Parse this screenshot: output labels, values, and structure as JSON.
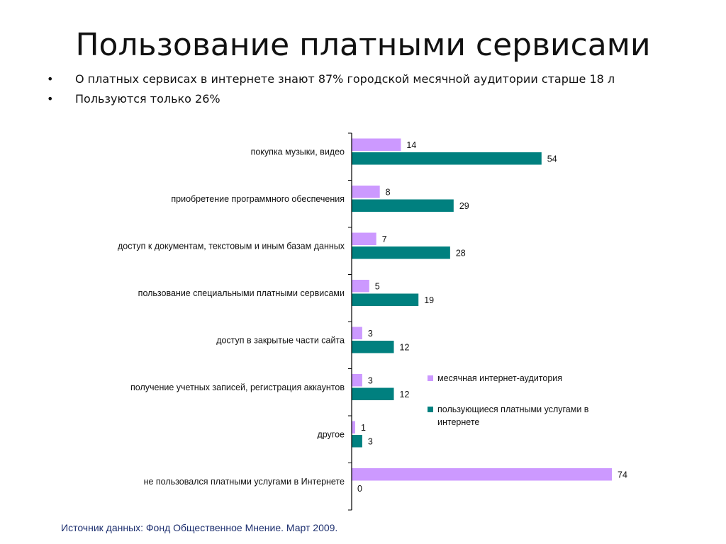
{
  "slide": {
    "title": "Пользование платными сервисами",
    "bullets": [
      "О платных сервисах в интернете знают 87% городской месячной аудитории старше 18 л",
      "Пользуются только 26%"
    ],
    "bullet_symbol": "•",
    "source": "Источник данных: Фонд Общественное Мнение.  Март 2009."
  },
  "chart_data": {
    "type": "bar",
    "orientation": "horizontal",
    "categories": [
      "покупка музыки, видео",
      "приобретение программного обеспечения",
      "доступ к документам, текстовым и иным базам данных",
      "пользование специальными платными сервисами",
      "доступ в закрытые части сайта",
      "получение учетных записей, регистрация аккаунтов",
      "другое",
      "не пользовался платными услугами в Интернете"
    ],
    "series": [
      {
        "name": "месячная интернет-аудитория",
        "color": "#cc99ff",
        "values": [
          14,
          8,
          7,
          5,
          3,
          3,
          1,
          74
        ]
      },
      {
        "name": "пользующиеся платными услугами в интернете",
        "color": "#00807f",
        "values": [
          54,
          29,
          28,
          19,
          12,
          12,
          3,
          0
        ]
      }
    ],
    "xlim": [
      0,
      74
    ],
    "legend_position": "right",
    "data_labels": true,
    "grid": false
  }
}
